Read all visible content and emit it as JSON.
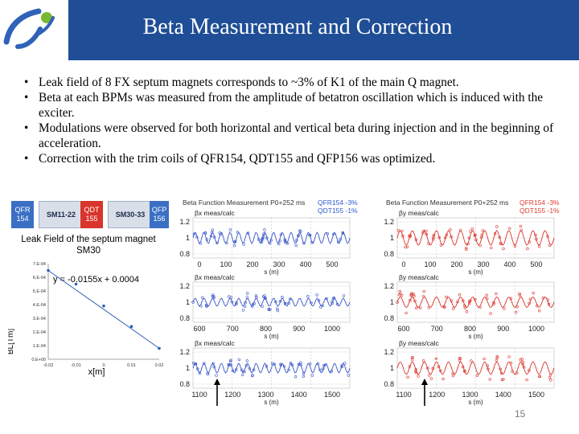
{
  "slide": {
    "title": "Beta Measurement and Correction",
    "page_number": "15"
  },
  "bullets": [
    "Leak field of 8 FX septum magnets corresponds to ~3% of K1 of the main Q magnet.",
    "Beta at each BPMs was measured from the amplitude of betatron oscillation which is induced with the exciter.",
    "Modulations were observed for both horizontal and vertical beta during injection and in the beginning of acceleration.",
    "Correction with the trim coils of QFR154, QDT155 and QFP156 was optimized."
  ],
  "magnets": [
    {
      "label": "QFR 154",
      "color": "#3a6fc4"
    },
    {
      "label": "SM11-22",
      "color": "#d9dfe8"
    },
    {
      "label": "QDT 155",
      "color": "#d9352b"
    },
    {
      "label": "SM30-33",
      "color": "#d9dfe8"
    },
    {
      "label": "QFP 156",
      "color": "#3a6fc4"
    }
  ],
  "leak_chart": {
    "title_line1": "Leak Field of the septum magnet",
    "title_line2": "SM30",
    "equation": "y = -0.0155x + 0.0004",
    "xlabel": "x[m]",
    "ylabel": "BL[Tm]",
    "xticks": [
      "-0.02",
      "-0.01",
      "0",
      "0.01",
      "0.02"
    ],
    "yticks": [
      "0.E+00",
      "1.E-04",
      "2.E-04",
      "3.E-04",
      "4.E-04",
      "5.E-04",
      "6.E-04",
      "7.E-04"
    ]
  },
  "panels": {
    "top_title": "Beta Function Measurement P0+252 ms",
    "legend_line1": "QFR154 -3%",
    "legend_line2": "QDT155 -1%",
    "label_x": "βx meas/calc",
    "label_y": "βy meas/calc",
    "s_label": "s (m)",
    "yticks": [
      "1.2",
      "1",
      "0.8"
    ],
    "row1_xticks": [
      "0",
      "100",
      "200",
      "300",
      "400",
      "500"
    ],
    "row2_xticks": [
      "600",
      "700",
      "800",
      "900",
      "1000"
    ],
    "row3_xticks": [
      "1100",
      "1200",
      "1300",
      "1400",
      "1500"
    ]
  },
  "chart_data": {
    "type": "scatter",
    "title": "Leak Field of the septum magnet SM30",
    "xlabel": "x[m]",
    "ylabel": "BL[Tm]",
    "xlim": [
      -0.02,
      0.02
    ],
    "ylim": [
      0,
      0.0007
    ],
    "x": [
      -0.02,
      -0.01,
      0,
      0.01,
      0.02
    ],
    "y": [
      0.00065,
      0.00055,
      0.00039,
      0.00024,
      8e-05
    ],
    "fit": {
      "slope": -0.0155,
      "intercept": 0.0004,
      "label": "y = -0.0155x + 0.0004"
    }
  },
  "colors": {
    "header": "#1f4e96",
    "blue_series": "#3a57c9",
    "red_series": "#d9352b",
    "legend_red": "#e03a2f",
    "legend_blue": "#2f5bd1"
  }
}
